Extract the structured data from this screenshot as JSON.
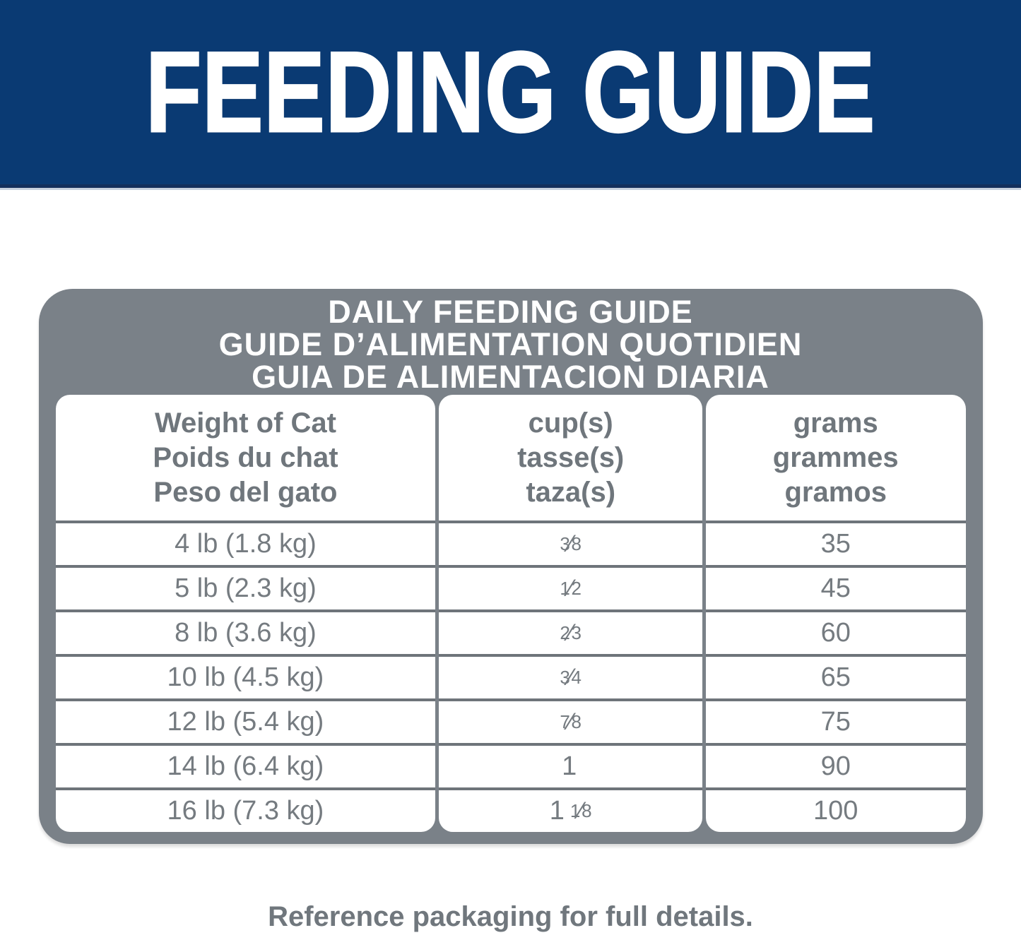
{
  "banner": {
    "title": "FEEDING GUIDE"
  },
  "card": {
    "title_lines": [
      "DAILY FEEDING GUIDE",
      "GUIDE D’ALIMENTATION QUOTIDIEN",
      "GUIA DE ALIMENTACION DIARIA"
    ]
  },
  "table": {
    "columns": [
      {
        "lines": [
          "Weight of Cat",
          "Poids du chat",
          "Peso del gato"
        ]
      },
      {
        "lines": [
          "cup(s)",
          "tasse(s)",
          "taza(s)"
        ]
      },
      {
        "lines": [
          "grams",
          "grammes",
          "gramos"
        ]
      }
    ],
    "rows": [
      {
        "weight": "4 lb (1.8 kg)",
        "cups": {
          "whole": "",
          "num": "3",
          "slash": "⁄",
          "den": "8"
        },
        "grams": "35"
      },
      {
        "weight": "5 lb (2.3 kg)",
        "cups": {
          "whole": "",
          "num": "1",
          "slash": "⁄",
          "den": "2"
        },
        "grams": "45"
      },
      {
        "weight": "8 lb (3.6 kg)",
        "cups": {
          "whole": "",
          "num": "2",
          "slash": "⁄",
          "den": "3"
        },
        "grams": "60"
      },
      {
        "weight": "10 lb (4.5 kg)",
        "cups": {
          "whole": "",
          "num": "3",
          "slash": "⁄",
          "den": "4"
        },
        "grams": "65"
      },
      {
        "weight": "12 lb (5.4 kg)",
        "cups": {
          "whole": "",
          "num": "7",
          "slash": "⁄",
          "den": "8"
        },
        "grams": "75"
      },
      {
        "weight": "14 lb (6.4 kg)",
        "cups": {
          "whole": "1",
          "num": "",
          "slash": "",
          "den": ""
        },
        "grams": "90"
      },
      {
        "weight": "16 lb (7.3 kg)",
        "cups": {
          "whole": "1",
          "num": "1",
          "slash": "⁄",
          "den": "8"
        },
        "grams": "100"
      }
    ]
  },
  "footer": {
    "note": "Reference packaging for full details."
  },
  "colors": {
    "banner_bg": "#0a3a73",
    "card_gray": "#7a8188",
    "row_line_gray": "#6e747a",
    "table_text_gray": "#757b80",
    "header_text_gray": "#6f767c",
    "title_text": "#ffffff"
  }
}
